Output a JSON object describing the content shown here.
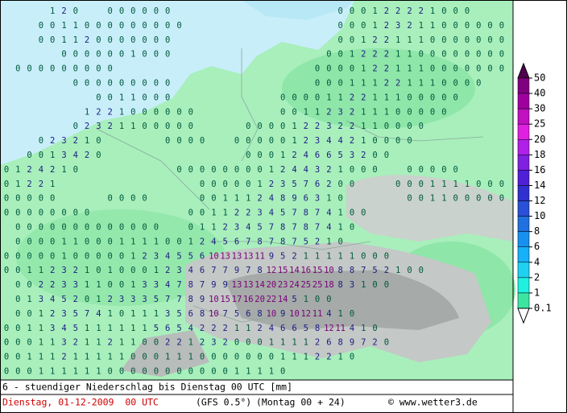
{
  "chart_data": {
    "type": "map",
    "title": "6 - stuendiger Niederschlag bis Dienstag 00 UTC [mm]",
    "subtitle": "Dienstag, 01-12-2009  00 UTC",
    "model": "(GFS 0.5°)",
    "run": "(Montag 00 + 24)",
    "credit": "© www.wetter3.de",
    "label_color_steps": [
      {
        "from": 0,
        "color": "#005a3c"
      },
      {
        "from": 2,
        "color": "#1c1c80"
      },
      {
        "from": 10,
        "color": "#780078"
      }
    ],
    "legend": {
      "levels": [
        50,
        40,
        30,
        25,
        20,
        18,
        16,
        14,
        12,
        10,
        8,
        6,
        4,
        2,
        1,
        0.1
      ],
      "colors": [
        "#800080",
        "#a000a0",
        "#c010c0",
        "#e020e0",
        "#b020e8",
        "#8020e0",
        "#5020d8",
        "#3030d0",
        "#2850d8",
        "#2070e0",
        "#1890f0",
        "#18b0f8",
        "#20d0f0",
        "#20f0e0",
        "#3ce6a0"
      ],
      "over_color": "#500050",
      "under_color": "#ffffff"
    },
    "rows": [
      [
        null,
        null,
        null,
        null,
        1,
        2,
        0,
        null,
        null,
        0,
        0,
        0,
        0,
        0,
        0,
        null,
        null,
        null,
        null,
        null,
        null,
        null,
        null,
        null,
        null,
        null,
        null,
        null,
        null,
        0,
        0,
        0,
        1,
        2,
        2,
        2,
        2,
        1,
        0,
        0,
        0
      ],
      [
        null,
        null,
        null,
        0,
        0,
        1,
        1,
        0,
        0,
        0,
        0,
        0,
        0,
        0,
        0,
        0,
        null,
        null,
        null,
        null,
        null,
        null,
        null,
        null,
        null,
        null,
        null,
        null,
        null,
        0,
        0,
        0,
        1,
        2,
        3,
        2,
        1,
        1,
        0,
        0,
        0,
        0,
        0,
        0
      ],
      [
        null,
        null,
        null,
        0,
        0,
        1,
        1,
        2,
        0,
        0,
        0,
        0,
        0,
        0,
        0,
        null,
        null,
        null,
        null,
        null,
        null,
        null,
        null,
        null,
        null,
        null,
        null,
        null,
        null,
        0,
        0,
        1,
        2,
        2,
        1,
        1,
        1,
        0,
        0,
        0,
        0,
        0,
        0,
        0
      ],
      [
        null,
        null,
        null,
        null,
        null,
        0,
        0,
        0,
        0,
        0,
        0,
        1,
        0,
        0,
        0,
        null,
        null,
        null,
        null,
        null,
        null,
        null,
        null,
        null,
        null,
        null,
        null,
        null,
        0,
        0,
        1,
        2,
        2,
        2,
        1,
        1,
        0,
        0,
        0,
        0,
        0,
        0,
        0,
        0
      ],
      [
        null,
        0,
        0,
        0,
        0,
        0,
        0,
        0,
        0,
        0,
        null,
        null,
        null,
        null,
        null,
        null,
        null,
        null,
        null,
        null,
        null,
        null,
        null,
        null,
        null,
        null,
        null,
        0,
        0,
        0,
        0,
        1,
        2,
        2,
        1,
        1,
        1,
        0,
        0,
        0,
        0,
        0,
        0,
        0
      ],
      [
        null,
        null,
        null,
        null,
        null,
        null,
        0,
        0,
        0,
        0,
        0,
        0,
        0,
        0,
        0,
        null,
        null,
        null,
        null,
        null,
        null,
        null,
        null,
        null,
        null,
        null,
        null,
        0,
        0,
        0,
        1,
        1,
        1,
        2,
        2,
        1,
        1,
        1,
        0,
        0,
        0,
        0
      ],
      [
        null,
        null,
        null,
        null,
        null,
        null,
        null,
        null,
        0,
        0,
        1,
        1,
        0,
        0,
        0,
        null,
        null,
        null,
        null,
        null,
        null,
        null,
        null,
        null,
        0,
        0,
        0,
        0,
        1,
        1,
        2,
        2,
        1,
        1,
        1,
        0,
        0,
        0,
        0,
        0
      ],
      [
        null,
        null,
        null,
        null,
        null,
        null,
        null,
        1,
        2,
        2,
        1,
        0,
        0,
        0,
        0,
        0,
        0,
        null,
        null,
        null,
        null,
        null,
        null,
        null,
        0,
        0,
        1,
        1,
        2,
        3,
        2,
        1,
        1,
        1,
        0,
        0,
        0,
        0,
        0
      ],
      [
        null,
        null,
        null,
        null,
        null,
        null,
        0,
        2,
        3,
        2,
        1,
        1,
        0,
        0,
        0,
        0,
        0,
        null,
        null,
        null,
        null,
        0,
        0,
        0,
        0,
        1,
        2,
        2,
        3,
        2,
        2,
        1,
        1,
        0,
        0,
        0,
        0
      ],
      [
        null,
        null,
        null,
        0,
        2,
        3,
        2,
        1,
        0,
        null,
        null,
        null,
        null,
        null,
        0,
        0,
        0,
        0,
        null,
        null,
        0,
        0,
        0,
        0,
        0,
        1,
        2,
        3,
        4,
        4,
        2,
        1,
        0,
        0,
        0,
        0
      ],
      [
        null,
        null,
        0,
        0,
        1,
        3,
        4,
        2,
        0,
        null,
        null,
        null,
        null,
        null,
        null,
        null,
        null,
        null,
        null,
        null,
        null,
        0,
        0,
        0,
        1,
        2,
        4,
        6,
        6,
        5,
        3,
        2,
        0,
        0
      ],
      [
        0,
        1,
        2,
        4,
        2,
        1,
        0,
        null,
        null,
        null,
        null,
        null,
        null,
        null,
        null,
        0,
        0,
        0,
        0,
        0,
        0,
        0,
        0,
        1,
        2,
        4,
        4,
        3,
        2,
        1,
        0,
        0,
        0,
        null,
        null,
        0,
        0,
        0,
        0,
        0
      ],
      [
        0,
        1,
        2,
        2,
        1,
        null,
        null,
        null,
        null,
        null,
        null,
        null,
        null,
        null,
        null,
        null,
        null,
        0,
        0,
        0,
        0,
        0,
        1,
        2,
        3,
        5,
        7,
        6,
        2,
        0,
        0,
        null,
        null,
        null,
        0,
        0,
        0,
        1,
        1,
        1,
        1,
        0,
        0,
        0
      ],
      [
        0,
        0,
        0,
        0,
        0,
        null,
        null,
        null,
        null,
        0,
        0,
        0,
        0,
        null,
        null,
        null,
        null,
        0,
        0,
        1,
        1,
        1,
        2,
        4,
        8,
        9,
        6,
        3,
        1,
        0,
        null,
        null,
        null,
        null,
        null,
        0,
        0,
        1,
        1,
        0,
        0,
        0,
        0,
        0
      ],
      [
        0,
        0,
        0,
        0,
        0,
        0,
        0,
        0,
        null,
        null,
        null,
        null,
        null,
        null,
        null,
        null,
        0,
        0,
        1,
        1,
        2,
        2,
        3,
        4,
        5,
        7,
        8,
        7,
        4,
        1,
        0,
        0
      ],
      [
        null,
        0,
        0,
        0,
        0,
        0,
        0,
        0,
        0,
        0,
        0,
        0,
        0,
        0,
        null,
        null,
        0,
        1,
        1,
        2,
        3,
        4,
        5,
        7,
        8,
        7,
        8,
        7,
        4,
        1,
        0
      ],
      [
        null,
        0,
        0,
        0,
        0,
        1,
        1,
        0,
        0,
        0,
        1,
        1,
        1,
        1,
        0,
        0,
        1,
        2,
        4,
        5,
        6,
        7,
        8,
        7,
        8,
        7,
        5,
        2,
        1,
        0
      ],
      [
        0,
        0,
        0,
        0,
        0,
        1,
        0,
        0,
        0,
        0,
        0,
        1,
        2,
        3,
        4,
        5,
        5,
        6,
        10,
        13,
        13,
        13,
        11,
        9,
        5,
        2,
        1,
        1,
        1,
        1,
        1,
        0,
        0,
        0
      ],
      [
        0,
        0,
        1,
        1,
        2,
        3,
        2,
        1,
        0,
        1,
        0,
        0,
        0,
        1,
        2,
        3,
        4,
        6,
        7,
        7,
        9,
        7,
        8,
        12,
        15,
        14,
        16,
        15,
        10,
        8,
        8,
        7,
        5,
        2,
        1,
        0,
        0
      ],
      [
        null,
        0,
        0,
        2,
        2,
        3,
        3,
        1,
        1,
        0,
        0,
        1,
        3,
        3,
        4,
        7,
        8,
        7,
        9,
        9,
        13,
        13,
        14,
        20,
        23,
        24,
        25,
        25,
        18,
        8,
        3,
        1,
        0,
        0
      ],
      [
        null,
        0,
        1,
        3,
        4,
        5,
        2,
        0,
        1,
        2,
        3,
        3,
        3,
        5,
        7,
        7,
        8,
        9,
        10,
        15,
        17,
        16,
        20,
        22,
        14,
        5,
        1,
        0,
        0
      ],
      [
        null,
        0,
        0,
        1,
        2,
        3,
        5,
        7,
        4,
        1,
        0,
        1,
        1,
        1,
        3,
        5,
        6,
        8,
        10,
        7,
        5,
        6,
        8,
        10,
        9,
        10,
        12,
        11,
        4,
        1,
        0
      ],
      [
        0,
        0,
        1,
        1,
        3,
        4,
        5,
        1,
        1,
        1,
        1,
        1,
        1,
        5,
        6,
        5,
        4,
        2,
        2,
        2,
        1,
        1,
        2,
        4,
        6,
        6,
        5,
        8,
        12,
        11,
        4,
        1,
        0
      ],
      [
        0,
        0,
        0,
        1,
        1,
        3,
        2,
        1,
        1,
        2,
        1,
        1,
        0,
        0,
        2,
        2,
        1,
        2,
        3,
        2,
        0,
        0,
        0,
        1,
        1,
        1,
        1,
        2,
        6,
        8,
        9,
        7,
        2,
        0
      ],
      [
        0,
        0,
        1,
        1,
        1,
        2,
        1,
        1,
        1,
        1,
        1,
        0,
        0,
        0,
        1,
        1,
        1,
        0,
        0,
        0,
        0,
        0,
        0,
        0,
        1,
        1,
        1,
        2,
        2,
        1,
        0
      ],
      [
        0,
        0,
        0,
        1,
        1,
        1,
        1,
        1,
        1,
        0,
        0,
        0,
        0,
        0,
        0,
        0,
        0,
        0,
        0,
        0,
        1,
        1,
        1,
        1,
        0
      ]
    ]
  }
}
